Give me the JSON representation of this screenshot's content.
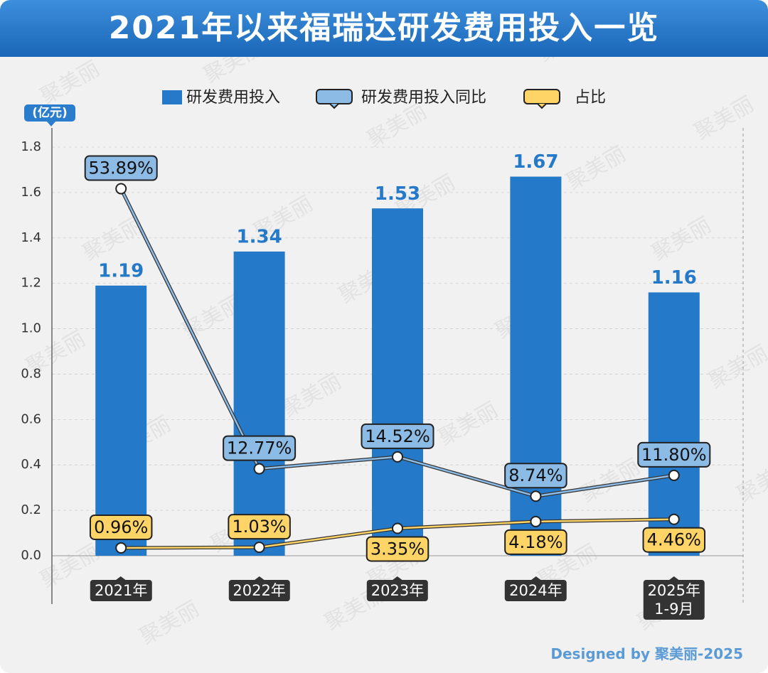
{
  "chart_data": {
    "type": "bar",
    "title": "2021年以来福瑞达研发费用投入一览",
    "unit_label": "(亿元)",
    "categories": [
      "2021年",
      "2022年",
      "2023年",
      "2024年",
      "2025年\n1-9月"
    ],
    "series": [
      {
        "name": "研发费用投入",
        "type": "bar",
        "color": "#2479c9",
        "values": [
          1.19,
          1.34,
          1.53,
          1.67,
          1.16
        ]
      },
      {
        "name": "研发费用投入同比",
        "type": "line",
        "axis": "y2",
        "color": "#8cbbe6",
        "values": [
          53.89,
          12.77,
          14.52,
          8.74,
          11.8
        ],
        "value_labels": [
          "53.89%",
          "12.77%",
          "14.52%",
          "8.74%",
          "11.80%"
        ]
      },
      {
        "name": "占比",
        "type": "line",
        "axis": "y3",
        "color": "#ffd466",
        "values": [
          0.96,
          1.03,
          3.35,
          4.18,
          4.46
        ],
        "value_labels": [
          "0.96%",
          "1.03%",
          "3.35%",
          "4.18%",
          "4.46%"
        ]
      }
    ],
    "ylim": [
      0,
      1.8
    ],
    "yticks": [
      {
        "value": 0,
        "label": "0.0"
      },
      0.2,
      0.4,
      0.6,
      0.8,
      {
        "value": 1,
        "label": "1.0"
      },
      1.2,
      1.4,
      1.6,
      1.8
    ],
    "y2lim": [
      0,
      60
    ],
    "y3lim": [
      0,
      50
    ],
    "grid": true
  },
  "watermark": "聚美丽",
  "footer": "Designed by 聚美丽-2025"
}
